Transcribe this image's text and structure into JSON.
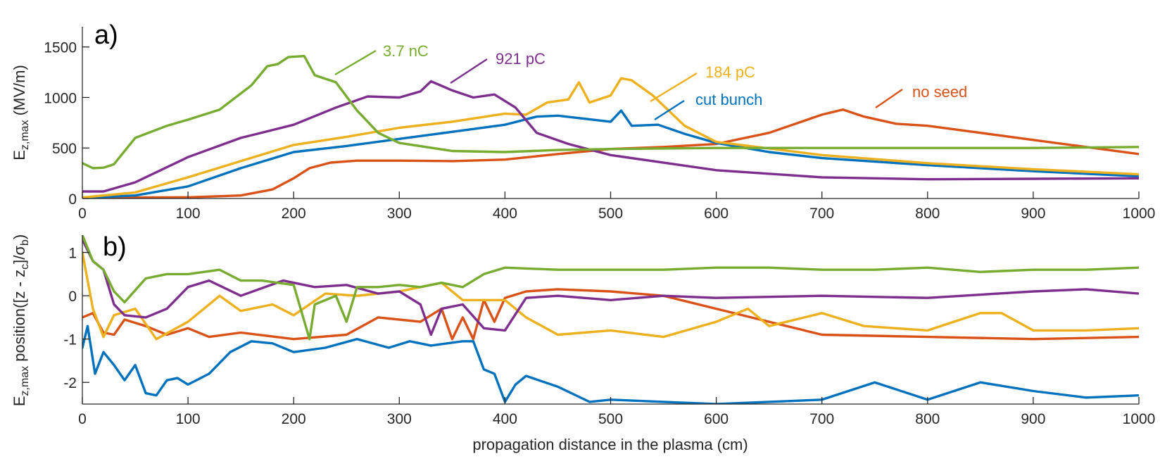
{
  "chart_data": [
    {
      "type": "line",
      "panel_label": "a)",
      "ylabel": {
        "main": "E",
        "sub": "z,max",
        "unit": " (MV/m)"
      },
      "xlim": [
        0,
        1000
      ],
      "ylim": [
        0,
        1700
      ],
      "xticks": [
        0,
        100,
        200,
        300,
        400,
        500,
        600,
        700,
        800,
        900,
        1000
      ],
      "yticks": [
        0,
        500,
        1000,
        1500
      ],
      "grid": false,
      "series": [
        {
          "name": "no seed",
          "color": "#D95319",
          "x": [
            0,
            50,
            100,
            150,
            180,
            200,
            215,
            235,
            260,
            300,
            350,
            400,
            450,
            500,
            550,
            600,
            650,
            700,
            720,
            740,
            770,
            800,
            850,
            900,
            950,
            1000
          ],
          "y": [
            10,
            10,
            12,
            30,
            90,
            200,
            300,
            355,
            375,
            375,
            370,
            385,
            440,
            490,
            510,
            540,
            650,
            830,
            880,
            810,
            740,
            720,
            650,
            580,
            510,
            440
          ]
        },
        {
          "name": "cut bunch",
          "color": "#0072BD",
          "x": [
            0,
            50,
            100,
            150,
            200,
            250,
            300,
            350,
            400,
            430,
            450,
            500,
            510,
            520,
            545,
            570,
            600,
            650,
            700,
            800,
            900,
            1000
          ],
          "y": [
            5,
            30,
            120,
            300,
            460,
            520,
            590,
            660,
            730,
            810,
            820,
            760,
            870,
            720,
            730,
            640,
            550,
            460,
            400,
            330,
            270,
            220
          ]
        },
        {
          "name": "184 pC",
          "color": "#EDB120",
          "x": [
            0,
            50,
            100,
            150,
            200,
            250,
            300,
            350,
            400,
            420,
            440,
            460,
            470,
            480,
            500,
            510,
            520,
            540,
            570,
            600,
            700,
            800,
            900,
            1000
          ],
          "y": [
            10,
            60,
            210,
            370,
            530,
            610,
            700,
            760,
            840,
            830,
            950,
            980,
            1150,
            950,
            1020,
            1190,
            1170,
            1020,
            720,
            560,
            430,
            350,
            290,
            240
          ]
        },
        {
          "name": "921 pC",
          "color": "#7E2F8E",
          "x": [
            0,
            20,
            50,
            100,
            150,
            200,
            240,
            270,
            300,
            320,
            330,
            350,
            370,
            390,
            410,
            430,
            460,
            500,
            600,
            700,
            800,
            900,
            1000
          ],
          "y": [
            70,
            70,
            160,
            410,
            600,
            730,
            900,
            1010,
            1000,
            1060,
            1160,
            1070,
            1000,
            1030,
            900,
            650,
            540,
            430,
            280,
            210,
            190,
            195,
            200
          ]
        },
        {
          "name": "3.7 nC",
          "color": "#77AC30",
          "x": [
            0,
            10,
            20,
            30,
            50,
            80,
            100,
            130,
            160,
            175,
            185,
            195,
            210,
            220,
            240,
            260,
            280,
            300,
            350,
            400,
            450,
            500,
            600,
            700,
            800,
            900,
            1000
          ],
          "y": [
            350,
            300,
            305,
            340,
            600,
            720,
            780,
            880,
            1120,
            1310,
            1330,
            1400,
            1410,
            1220,
            1150,
            870,
            650,
            550,
            470,
            460,
            480,
            490,
            500,
            500,
            500,
            500,
            510
          ]
        }
      ],
      "annotations": [
        {
          "text": "no seed",
          "series": "no seed"
        },
        {
          "text": "cut bunch",
          "series": "cut bunch"
        },
        {
          "text": "184 pC",
          "series": "184 pC"
        },
        {
          "text": "921 pC",
          "series": "921 pC"
        },
        {
          "text": "3.7 nC",
          "series": "3.7 nC"
        }
      ]
    },
    {
      "type": "line",
      "panel_label": "b)",
      "ylabel": {
        "main": "E",
        "sub1": "z,max",
        "mid": " position([z - z",
        "sub2": "c",
        "tail": "]/σ",
        "sub3": "b",
        "end": ")"
      },
      "xlabel": "propagation distance in the plasma (cm)",
      "xlim": [
        0,
        1000
      ],
      "ylim": [
        -2.5,
        1.4
      ],
      "xticks": [
        0,
        100,
        200,
        300,
        400,
        500,
        600,
        700,
        800,
        900,
        1000
      ],
      "yticks": [
        -2,
        -1,
        0,
        1
      ],
      "grid": false,
      "series": [
        {
          "name": "no seed",
          "color": "#D95319",
          "x": [
            0,
            10,
            20,
            30,
            40,
            60,
            80,
            100,
            120,
            150,
            200,
            250,
            280,
            300,
            320,
            340,
            350,
            360,
            370,
            380,
            390,
            400,
            420,
            450,
            500,
            550,
            600,
            650,
            700,
            800,
            900,
            1000
          ],
          "y": [
            -0.5,
            -0.4,
            -0.85,
            -0.9,
            -0.55,
            -0.7,
            -0.9,
            -0.75,
            -0.95,
            -0.85,
            -1.0,
            -0.9,
            -0.5,
            -0.55,
            -0.6,
            -0.3,
            -1.0,
            -0.5,
            -1.0,
            -0.1,
            -0.6,
            -0.05,
            0.1,
            0.15,
            0.1,
            0.0,
            -0.3,
            -0.6,
            -0.9,
            -0.95,
            -1.0,
            -0.95
          ]
        },
        {
          "name": "cut bunch",
          "color": "#0072BD",
          "x": [
            0,
            5,
            12,
            20,
            30,
            40,
            50,
            60,
            70,
            80,
            90,
            100,
            120,
            140,
            160,
            180,
            200,
            230,
            260,
            290,
            310,
            330,
            360,
            370,
            380,
            390,
            400,
            410,
            420,
            450,
            480,
            500,
            550,
            600,
            650,
            700,
            750,
            800,
            850,
            900,
            950,
            1000
          ],
          "y": [
            -1.2,
            -0.7,
            -1.8,
            -1.3,
            -1.6,
            -1.95,
            -1.6,
            -2.25,
            -2.3,
            -1.95,
            -1.9,
            -2.05,
            -1.8,
            -1.3,
            -1.05,
            -1.1,
            -1.3,
            -1.2,
            -1.0,
            -1.2,
            -1.05,
            -1.15,
            -1.05,
            -1.05,
            -1.7,
            -1.8,
            -2.45,
            -2.05,
            -1.85,
            -2.1,
            -2.45,
            -2.4,
            -2.45,
            -2.5,
            -2.45,
            -2.4,
            -2.0,
            -2.4,
            -2.0,
            -2.2,
            -2.35,
            -2.3
          ]
        },
        {
          "name": "184 pC",
          "color": "#EDB120",
          "x": [
            0,
            10,
            20,
            30,
            50,
            70,
            100,
            130,
            150,
            180,
            200,
            230,
            260,
            300,
            340,
            360,
            380,
            400,
            420,
            450,
            500,
            550,
            600,
            630,
            650,
            700,
            740,
            800,
            850,
            870,
            900,
            950,
            1000
          ],
          "y": [
            1.0,
            -0.3,
            -0.95,
            -0.45,
            -0.3,
            -1.0,
            -0.6,
            0.0,
            -0.35,
            -0.2,
            -0.45,
            0.05,
            0.0,
            0.1,
            0.3,
            -0.1,
            -0.1,
            -0.1,
            -0.5,
            -0.9,
            -0.8,
            -0.95,
            -0.6,
            -0.3,
            -0.7,
            -0.4,
            -0.7,
            -0.8,
            -0.4,
            -0.4,
            -0.8,
            -0.8,
            -0.75
          ]
        },
        {
          "name": "921 pC",
          "color": "#7E2F8E",
          "x": [
            0,
            10,
            20,
            30,
            40,
            60,
            80,
            100,
            120,
            150,
            190,
            220,
            250,
            280,
            300,
            320,
            330,
            340,
            360,
            380,
            400,
            420,
            450,
            500,
            550,
            600,
            700,
            800,
            900,
            950,
            1000
          ],
          "y": [
            1.3,
            0.8,
            0.6,
            -0.2,
            -0.45,
            -0.5,
            -0.3,
            0.2,
            0.35,
            0.0,
            0.35,
            0.2,
            0.25,
            0.05,
            0.1,
            -0.2,
            -0.9,
            -0.3,
            -0.2,
            -0.75,
            -0.8,
            -0.05,
            0.0,
            -0.1,
            0.0,
            -0.05,
            0.0,
            -0.05,
            0.1,
            0.15,
            0.05
          ]
        },
        {
          "name": "3.7 nC",
          "color": "#77AC30",
          "x": [
            0,
            10,
            20,
            30,
            40,
            60,
            80,
            100,
            130,
            150,
            170,
            200,
            215,
            220,
            240,
            250,
            260,
            280,
            300,
            320,
            340,
            360,
            380,
            400,
            450,
            500,
            550,
            600,
            650,
            700,
            750,
            800,
            850,
            900,
            950,
            1000
          ],
          "y": [
            1.4,
            0.8,
            0.6,
            0.1,
            -0.15,
            0.4,
            0.5,
            0.5,
            0.6,
            0.35,
            0.35,
            0.25,
            -1.0,
            -0.2,
            0.0,
            -0.6,
            0.2,
            0.2,
            0.25,
            0.2,
            0.3,
            0.2,
            0.5,
            0.65,
            0.6,
            0.6,
            0.6,
            0.65,
            0.65,
            0.6,
            0.6,
            0.65,
            0.55,
            0.6,
            0.6,
            0.65
          ]
        }
      ]
    }
  ]
}
